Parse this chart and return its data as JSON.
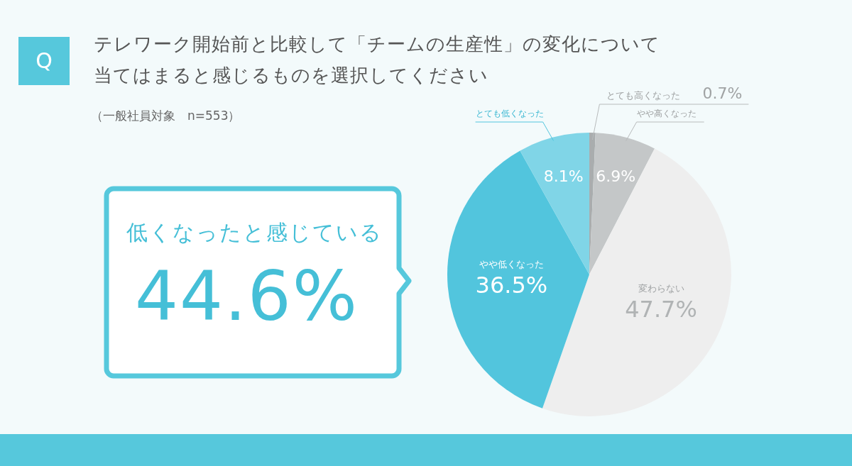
{
  "chart_data": {
    "type": "pie",
    "title": "テレワーク開始前と比較して「チームの生産性」の変化について当てはまると感じるものを選択してください",
    "subtitle": "（一般社員対象　n=553）",
    "categories": [
      "とても高くなった",
      "やや高くなった",
      "変わらない",
      "やや低くなった",
      "とても低くなった"
    ],
    "values": [
      0.7,
      6.9,
      47.7,
      36.5,
      8.1
    ],
    "colors": [
      "#a9adae",
      "#c4c7c8",
      "#eeeeee",
      "#52c5dd",
      "#80d5e7"
    ],
    "value_labels": [
      "0.7%",
      "6.9%",
      "47.7%",
      "36.5%",
      "8.1%"
    ],
    "annotations": [
      "Q",
      "低くなったと感じている",
      "44.6%"
    ]
  }
}
